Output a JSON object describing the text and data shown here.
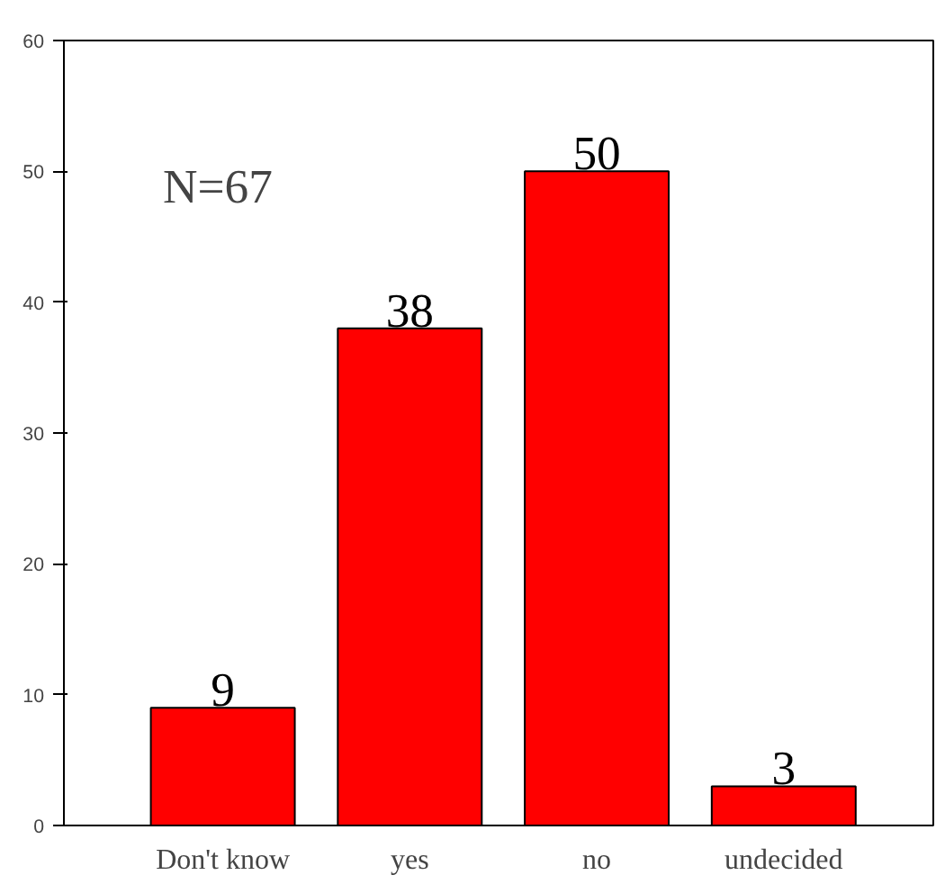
{
  "chart_data": {
    "type": "bar",
    "categories": [
      "Don't know",
      "yes",
      "no",
      "undecided"
    ],
    "values": [
      9,
      38,
      50,
      3
    ],
    "color": "#ff0000",
    "ylim": [
      0,
      60
    ],
    "yticks": [
      0,
      10,
      20,
      30,
      40,
      50,
      60
    ],
    "data_labels": true,
    "grid": false,
    "annotations": [
      "N=67"
    ]
  }
}
